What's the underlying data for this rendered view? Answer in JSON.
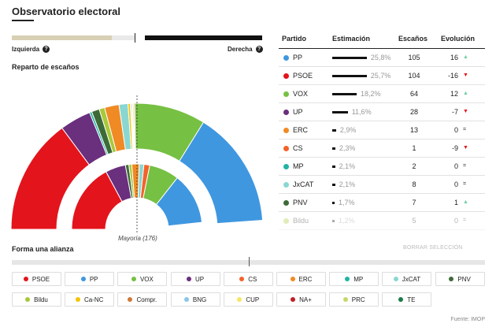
{
  "header": {
    "title": "Observatorio electoral"
  },
  "spectrum": {
    "left_label": "Izquierda",
    "right_label": "Derecha",
    "help_glyph": "?",
    "left_fraction": 0.495,
    "right_fraction": 0.505,
    "left_color": "#d8d0b4",
    "right_color": "#111111"
  },
  "seats_section": {
    "title": "Reparto de escaños",
    "majority_label": "Mayoría (176)"
  },
  "table": {
    "headers": {
      "party": "Partido",
      "estimate": "Estimación",
      "seats": "Escaños",
      "evolution": "Evolución"
    },
    "rows": [
      {
        "party": "PP",
        "color": "#3f97e0",
        "estimate": "25,8%",
        "seats": "105",
        "evolution": "16",
        "arrow": "▲",
        "arrow_color": "#6ccfa2",
        "bar": 25.8
      },
      {
        "party": "PSOE",
        "color": "#e3141c",
        "estimate": "25,7%",
        "seats": "104",
        "evolution": "-16",
        "arrow": "▼",
        "arrow_color": "#e3141c",
        "bar": 25.7
      },
      {
        "party": "VOX",
        "color": "#76c043",
        "estimate": "18,2%",
        "seats": "64",
        "evolution": "12",
        "arrow": "▲",
        "arrow_color": "#6ccfa2",
        "bar": 18.2
      },
      {
        "party": "UP",
        "color": "#6a2f7d",
        "estimate": "11,6%",
        "seats": "28",
        "evolution": "-7",
        "arrow": "▼",
        "arrow_color": "#e3141c",
        "bar": 11.6
      },
      {
        "party": "ERC",
        "color": "#f08a24",
        "estimate": "2,9%",
        "seats": "13",
        "evolution": "0",
        "arrow": "=",
        "arrow_color": "#222222",
        "bar": 2.9
      },
      {
        "party": "CS",
        "color": "#f2632c",
        "estimate": "2,3%",
        "seats": "1",
        "evolution": "-9",
        "arrow": "▼",
        "arrow_color": "#e3141c",
        "bar": 2.3
      },
      {
        "party": "MP",
        "color": "#23b3a5",
        "estimate": "2,1%",
        "seats": "2",
        "evolution": "0",
        "arrow": "=",
        "arrow_color": "#222222",
        "bar": 2.1
      },
      {
        "party": "JxCAT",
        "color": "#8ad7d2",
        "estimate": "2,1%",
        "seats": "8",
        "evolution": "0",
        "arrow": "=",
        "arrow_color": "#222222",
        "bar": 2.1
      },
      {
        "party": "PNV",
        "color": "#3d6b38",
        "estimate": "1,7%",
        "seats": "7",
        "evolution": "1",
        "arrow": "▲",
        "arrow_color": "#6ccfa2",
        "bar": 1.7
      },
      {
        "party": "Bildu",
        "color": "#a8c93a",
        "estimate": "1,2%",
        "seats": "5",
        "evolution": "0",
        "arrow": "=",
        "arrow_color": "#222222",
        "bar": 1.2
      }
    ]
  },
  "chart_data": {
    "type": "pie",
    "title": "Reparto de escaños",
    "total_seats": 350,
    "majority": 176,
    "outer_ring": [
      {
        "party": "PSOE",
        "seats": 104,
        "color": "#e3141c"
      },
      {
        "party": "UP",
        "seats": 28,
        "color": "#6a2f7d"
      },
      {
        "party": "MP",
        "seats": 2,
        "color": "#23b3a5"
      },
      {
        "party": "PNV",
        "seats": 7,
        "color": "#3d6b38"
      },
      {
        "party": "Bildu",
        "seats": 5,
        "color": "#a8c93a"
      },
      {
        "party": "ERC",
        "seats": 13,
        "color": "#f08a24"
      },
      {
        "party": "JxCAT",
        "seats": 8,
        "color": "#8ad7d2"
      },
      {
        "party": "Ca-NC",
        "seats": 2,
        "color": "#f5c400"
      },
      {
        "party": "BNG",
        "seats": 1,
        "color": "#8bc5ea"
      },
      {
        "party": "CUP",
        "seats": 1,
        "color": "#f7e663"
      },
      {
        "party": "PRC",
        "seats": 1,
        "color": "#c4d86a"
      },
      {
        "party": "CS",
        "seats": 1,
        "color": "#f2632c"
      },
      {
        "party": "VOX",
        "seats": 64,
        "color": "#76c043"
      },
      {
        "party": "PP",
        "seats": 105,
        "color": "#3f97e0"
      }
    ],
    "inner_ring": [
      {
        "party": "PSOE",
        "seats": 120,
        "color": "#e3141c"
      },
      {
        "party": "UP",
        "seats": 35,
        "color": "#6a2f7d"
      },
      {
        "party": "PNV",
        "seats": 6,
        "color": "#3d6b38"
      },
      {
        "party": "Bildu",
        "seats": 5,
        "color": "#a8c93a"
      },
      {
        "party": "ERC",
        "seats": 13,
        "color": "#f08a24"
      },
      {
        "party": "JxCAT",
        "seats": 8,
        "color": "#8ad7d2"
      },
      {
        "party": "CS",
        "seats": 10,
        "color": "#f2632c"
      },
      {
        "party": "VOX",
        "seats": 52,
        "color": "#76c043"
      },
      {
        "party": "PP",
        "seats": 89,
        "color": "#3f97e0"
      }
    ]
  },
  "alliance": {
    "title": "Forma una alianza",
    "clear_label": "BORRAR SELECCIÓN",
    "chips": [
      {
        "label": "PSOE",
        "color": "#e3141c"
      },
      {
        "label": "PP",
        "color": "#3f97e0"
      },
      {
        "label": "VOX",
        "color": "#76c043"
      },
      {
        "label": "UP",
        "color": "#6a2f7d"
      },
      {
        "label": "CS",
        "color": "#f2632c"
      },
      {
        "label": "ERC",
        "color": "#f08a24"
      },
      {
        "label": "MP",
        "color": "#23b3a5"
      },
      {
        "label": "JxCAT",
        "color": "#8ad7d2"
      },
      {
        "label": "PNV",
        "color": "#3d6b38"
      },
      {
        "label": "Bildu",
        "color": "#a8c93a"
      },
      {
        "label": "Ca-NC",
        "color": "#f5c400"
      },
      {
        "label": "Compr.",
        "color": "#d07a3a"
      },
      {
        "label": "BNG",
        "color": "#8bc5ea"
      },
      {
        "label": "CUP",
        "color": "#f7e663"
      },
      {
        "label": "NA+",
        "color": "#c0202a"
      },
      {
        "label": "PRC",
        "color": "#c4d86a"
      },
      {
        "label": "TE",
        "color": "#1c7a4a"
      }
    ]
  },
  "footer": {
    "source": "Fuente: IMOP"
  }
}
